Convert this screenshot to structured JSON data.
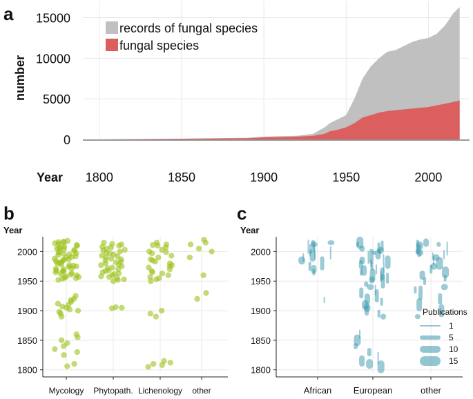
{
  "chart_data": [
    {
      "panel": "a",
      "type": "area",
      "ylabel": "number",
      "xlabel": "Year",
      "xlim": [
        1790,
        2025
      ],
      "ylim": [
        0,
        17000
      ],
      "xticks": [
        1800,
        1850,
        1900,
        1950,
        2000
      ],
      "yticks": [
        0,
        5000,
        10000,
        15000
      ],
      "legend_position": "top-left",
      "series": [
        {
          "name": "records of fungal species",
          "color": "#c0c0c0",
          "x": [
            1800,
            1850,
            1890,
            1900,
            1910,
            1920,
            1930,
            1937,
            1940,
            1945,
            1950,
            1955,
            1960,
            1965,
            1970,
            1975,
            1980,
            1985,
            1990,
            1995,
            2000,
            2005,
            2010,
            2015,
            2019
          ],
          "values": [
            0,
            100,
            200,
            350,
            400,
            450,
            700,
            1500,
            2000,
            2500,
            3000,
            5000,
            7500,
            9000,
            10000,
            10800,
            11000,
            11500,
            12000,
            12300,
            12500,
            13000,
            14000,
            15500,
            16300
          ]
        },
        {
          "name": "fungal species",
          "color": "#dc5f5f",
          "x": [
            1800,
            1850,
            1890,
            1900,
            1910,
            1920,
            1930,
            1937,
            1940,
            1945,
            1950,
            1955,
            1960,
            1965,
            1970,
            1975,
            1980,
            1985,
            1990,
            1995,
            2000,
            2005,
            2010,
            2015,
            2019
          ],
          "values": [
            0,
            80,
            150,
            250,
            300,
            350,
            450,
            700,
            1000,
            1200,
            1500,
            2000,
            2700,
            3000,
            3300,
            3500,
            3600,
            3700,
            3800,
            3900,
            4000,
            4200,
            4400,
            4600,
            4800
          ]
        }
      ]
    },
    {
      "panel": "b",
      "type": "scatter",
      "ylabel": "Year",
      "ylim": [
        1795,
        2025
      ],
      "yticks": [
        1800,
        1850,
        1900,
        1950,
        2000
      ],
      "categories": [
        "Mycology",
        "Phytopath.",
        "Lichenology",
        "other"
      ],
      "color": "#9dc21b",
      "points": [
        {
          "category": "Mycology",
          "years": [
            1955,
            1960,
            1965,
            1970,
            1975,
            1980,
            1985,
            1990,
            1995,
            2000,
            2005,
            2010,
            2015,
            1952,
            1958,
            1962,
            1968,
            1972,
            1978,
            1982,
            1988,
            1992,
            1998,
            2003,
            2008,
            2013,
            2018,
            1954,
            1964,
            1974,
            1984,
            1994,
            2004,
            2014,
            1957,
            1967,
            1977,
            1987,
            1997,
            2007,
            2017,
            1956,
            1966,
            1976,
            1986,
            1996,
            2006,
            2016,
            1961,
            1971,
            1981,
            1991,
            2001,
            2011,
            1925,
            1920,
            1915,
            1910,
            1905,
            1900,
            1895,
            1890,
            1912,
            1907,
            1902,
            1918,
            1898,
            1860,
            1855,
            1850,
            1845,
            1840,
            1835,
            1830,
            1825,
            1810,
            1806
          ]
        },
        {
          "category": "Phytopath.",
          "years": [
            2015,
            2012,
            2010,
            2008,
            2005,
            2002,
            2000,
            1998,
            1995,
            1992,
            1990,
            1988,
            1985,
            1982,
            1980,
            1978,
            1975,
            1972,
            1970,
            1968,
            1965,
            1962,
            1960,
            1958,
            1955,
            1952,
            1950,
            2013,
            2007,
            2003,
            1997,
            1993,
            1987,
            1983,
            1977,
            1973,
            1967,
            1963,
            1957,
            1953,
            1906,
            1905,
            1904
          ]
        },
        {
          "category": "Lichenology",
          "years": [
            2015,
            2012,
            2010,
            2007,
            2003,
            2000,
            1997,
            1993,
            1990,
            1987,
            1983,
            1980,
            1977,
            1973,
            1970,
            1967,
            1963,
            1960,
            1957,
            1953,
            1950,
            2011,
            1999,
            1985,
            1975,
            1965,
            1955,
            1900,
            1895,
            1890,
            1815,
            1812,
            1810,
            1808,
            1805
          ]
        },
        {
          "category": "other",
          "years": [
            2020,
            2015,
            2012,
            2005,
            2000,
            1990,
            1960,
            1930,
            1920
          ]
        }
      ]
    },
    {
      "panel": "c",
      "type": "scatter",
      "ylabel": "Year",
      "ylim": [
        1795,
        2025
      ],
      "yticks": [
        1800,
        1850,
        1900,
        1950,
        2000
      ],
      "categories": [
        "African",
        "European",
        "other"
      ],
      "color": "#3a98ad",
      "size_legend_title": "Publications",
      "size_legend": [
        1,
        5,
        10,
        15
      ],
      "points": [
        {
          "category": "African",
          "years": [
            2015,
            2012,
            2010,
            2008,
            2005,
            2002,
            2000,
            1998,
            1995,
            1992,
            1990,
            1985,
            1980,
            1975,
            1970,
            1965,
            1918
          ]
        },
        {
          "category": "European",
          "years": [
            2015,
            2012,
            2010,
            2008,
            2005,
            2002,
            2000,
            1998,
            1995,
            1992,
            1990,
            1988,
            1985,
            1982,
            1980,
            1978,
            1975,
            1972,
            1970,
            1968,
            1965,
            1962,
            1960,
            1958,
            1955,
            1952,
            1950,
            1945,
            1940,
            1935,
            1930,
            1925,
            1920,
            1915,
            1910,
            1905,
            1900,
            1895,
            1890,
            1860,
            1850,
            1840,
            1830,
            1820,
            1815,
            1810,
            1805
          ]
        },
        {
          "category": "other",
          "years": [
            2015,
            2012,
            2010,
            2008,
            2005,
            2002,
            2000,
            1998,
            1995,
            1992,
            1990,
            1985,
            1980,
            1975,
            1970,
            1965,
            1960,
            1955,
            1950,
            1940,
            1935,
            1930,
            1920,
            1910,
            1900,
            1890
          ]
        }
      ]
    }
  ]
}
